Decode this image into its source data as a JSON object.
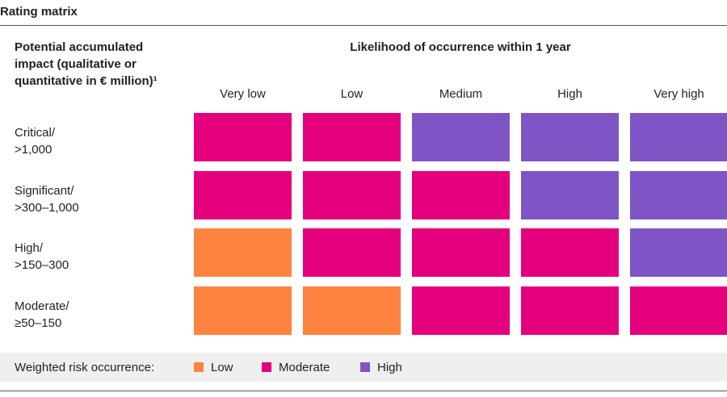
{
  "title": "Rating matrix",
  "row_header": [
    "Potential accumulated",
    "impact (qualitative or",
    "quantitative in € million)¹"
  ],
  "column_header": "Likelihood of occurrence within 1 year",
  "columns": [
    "Very low",
    "Low",
    "Medium",
    "High",
    "Very high"
  ],
  "rows": [
    {
      "label": [
        "Critical/",
        ">1,000"
      ],
      "cells": [
        "Moderate",
        "Moderate",
        "High",
        "High",
        "High"
      ]
    },
    {
      "label": [
        "Significant/",
        ">300–1,000"
      ],
      "cells": [
        "Moderate",
        "Moderate",
        "Moderate",
        "High",
        "High"
      ]
    },
    {
      "label": [
        "High/",
        ">150–300"
      ],
      "cells": [
        "Low",
        "Moderate",
        "Moderate",
        "Moderate",
        "High"
      ]
    },
    {
      "label": [
        "Moderate/",
        "≥50–150"
      ],
      "cells": [
        "Low",
        "Low",
        "Moderate",
        "Moderate",
        "Moderate"
      ]
    }
  ],
  "legend": {
    "label": "Weighted risk occurrence:",
    "items": [
      {
        "label": "Low",
        "color": "#ff8340"
      },
      {
        "label": "Moderate",
        "color": "#e5007d"
      },
      {
        "label": "High",
        "color": "#7f55c6"
      }
    ]
  }
}
